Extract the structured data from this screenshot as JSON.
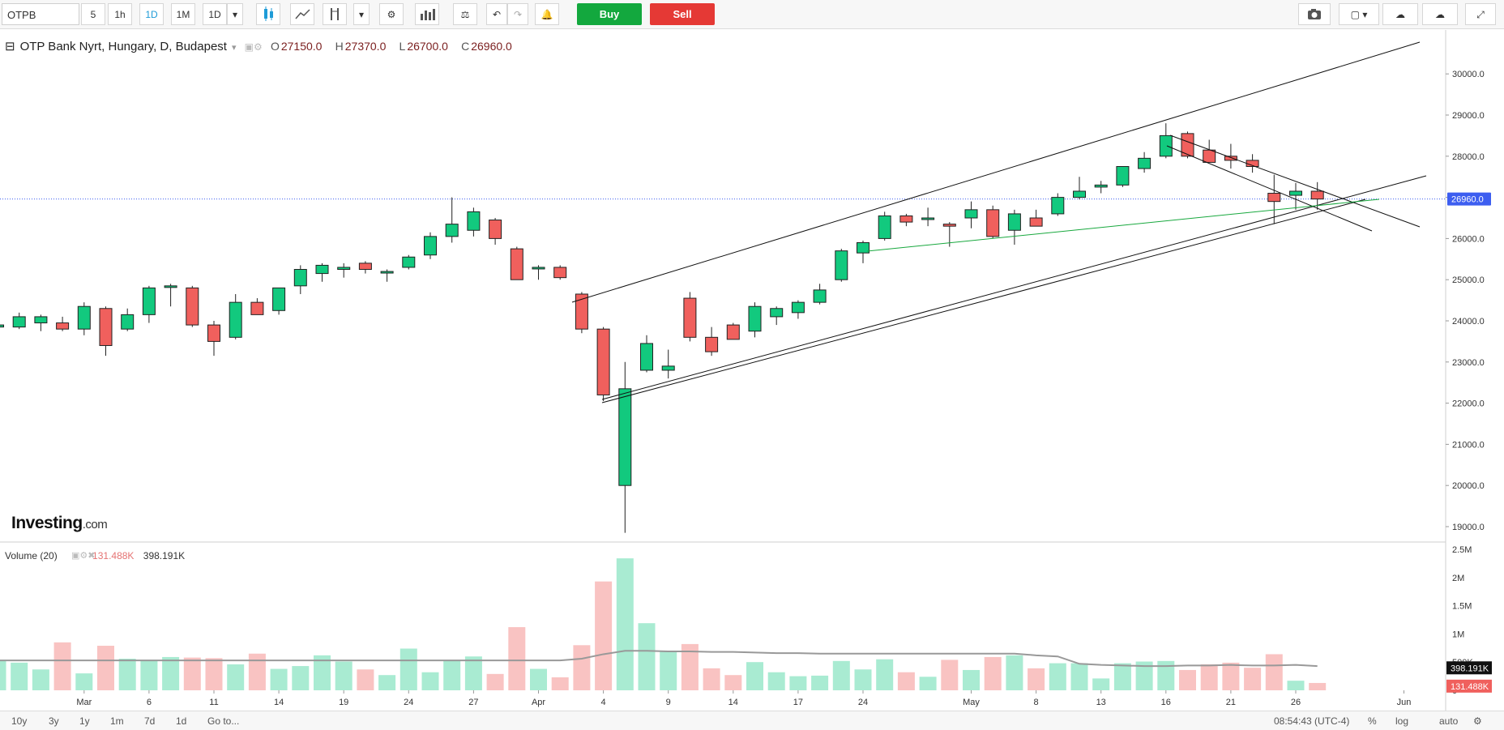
{
  "toolbar": {
    "symbol": "OTPB",
    "intervals": [
      "5",
      "1h",
      "1D",
      "1M",
      "1D"
    ],
    "active_interval_index": 2,
    "buy_label": "Buy",
    "sell_label": "Sell"
  },
  "legend": {
    "title": "OTP Bank Nyrt, Hungary, D, Budapest",
    "open_label": "O",
    "open": "27150.0",
    "high_label": "H",
    "high": "27370.0",
    "low_label": "L",
    "low": "26700.0",
    "close_label": "C",
    "close": "26960.0"
  },
  "volume_legend": {
    "title": "Volume (20)",
    "value1": "131.488K",
    "value2": "398.191K"
  },
  "logo": {
    "main": "Investing",
    "suffix": ".com"
  },
  "bottom": {
    "ranges": [
      "10y",
      "3y",
      "1y",
      "1m",
      "7d",
      "1d"
    ],
    "goto": "Go to...",
    "time": "08:54:43 (UTC-4)",
    "percent": "%",
    "log": "log",
    "auto": "auto"
  },
  "colors": {
    "up": "#12c97e",
    "down": "#f0605d",
    "volume_up": "#a9ebd2",
    "volume_down": "#f9c3c2",
    "price_line": "#3d5ef0"
  },
  "chart_data": {
    "type": "candlestick",
    "current_price": 26960,
    "current_price_label": "26960.0",
    "ylim": [
      18700,
      30700
    ],
    "y_ticks": [
      19000,
      20000,
      21000,
      22000,
      23000,
      24000,
      25000,
      26000,
      27000,
      28000,
      29000,
      30000
    ],
    "y_tick_labels": [
      "19000.0",
      "20000.0",
      "21000.0",
      "22000.0",
      "23000.0",
      "24000.0",
      "25000.0",
      "26000.0",
      "27000.0",
      "28000.0",
      "29000.0",
      "30000.0"
    ],
    "x_ticks": [
      {
        "index": 4,
        "label": "Mar"
      },
      {
        "index": 7,
        "label": "6"
      },
      {
        "index": 10,
        "label": "11"
      },
      {
        "index": 13,
        "label": "14"
      },
      {
        "index": 16,
        "label": "19"
      },
      {
        "index": 19,
        "label": "24"
      },
      {
        "index": 22,
        "label": "27"
      },
      {
        "index": 25,
        "label": "Apr"
      },
      {
        "index": 28,
        "label": "4"
      },
      {
        "index": 31,
        "label": "9"
      },
      {
        "index": 34,
        "label": "14"
      },
      {
        "index": 37,
        "label": "17"
      },
      {
        "index": 40,
        "label": "24"
      },
      {
        "index": 45,
        "label": "May"
      },
      {
        "index": 48,
        "label": "8"
      },
      {
        "index": 51,
        "label": "13"
      },
      {
        "index": 54,
        "label": "16"
      },
      {
        "index": 57,
        "label": "21"
      },
      {
        "index": 60,
        "label": "26"
      },
      {
        "index": 65,
        "label": "Jun"
      }
    ],
    "candles": [
      {
        "o": 23850,
        "h": 23950,
        "l": 23800,
        "c": 23900
      },
      {
        "o": 23850,
        "h": 24200,
        "l": 23800,
        "c": 24100
      },
      {
        "o": 23950,
        "h": 24150,
        "l": 23750,
        "c": 24100
      },
      {
        "o": 23950,
        "h": 24100,
        "l": 23750,
        "c": 23800
      },
      {
        "o": 23800,
        "h": 24450,
        "l": 23650,
        "c": 24350
      },
      {
        "o": 24300,
        "h": 24350,
        "l": 23150,
        "c": 23400
      },
      {
        "o": 23800,
        "h": 24300,
        "l": 23750,
        "c": 24150
      },
      {
        "o": 24150,
        "h": 24850,
        "l": 23950,
        "c": 24800
      },
      {
        "o": 24820,
        "h": 24900,
        "l": 24350,
        "c": 24850
      },
      {
        "o": 24800,
        "h": 24850,
        "l": 23850,
        "c": 23900
      },
      {
        "o": 23900,
        "h": 24000,
        "l": 23150,
        "c": 23500
      },
      {
        "o": 23600,
        "h": 24650,
        "l": 23550,
        "c": 24450
      },
      {
        "o": 24450,
        "h": 24550,
        "l": 24150,
        "c": 24150
      },
      {
        "o": 24250,
        "h": 24800,
        "l": 24150,
        "c": 24800
      },
      {
        "o": 24850,
        "h": 25350,
        "l": 24650,
        "c": 25250
      },
      {
        "o": 25150,
        "h": 25400,
        "l": 24950,
        "c": 25350
      },
      {
        "o": 25250,
        "h": 25400,
        "l": 25050,
        "c": 25300
      },
      {
        "o": 25400,
        "h": 25450,
        "l": 25150,
        "c": 25250
      },
      {
        "o": 25200,
        "h": 25250,
        "l": 24950,
        "c": 25200
      },
      {
        "o": 25300,
        "h": 25600,
        "l": 25250,
        "c": 25550
      },
      {
        "o": 25600,
        "h": 26150,
        "l": 25500,
        "c": 26050
      },
      {
        "o": 26050,
        "h": 27000,
        "l": 25900,
        "c": 26350
      },
      {
        "o": 26200,
        "h": 26750,
        "l": 26050,
        "c": 26650
      },
      {
        "o": 26450,
        "h": 26500,
        "l": 25850,
        "c": 26000
      },
      {
        "o": 25750,
        "h": 25800,
        "l": 25000,
        "c": 25000
      },
      {
        "o": 25300,
        "h": 25350,
        "l": 25000,
        "c": 25300
      },
      {
        "o": 25300,
        "h": 25350,
        "l": 25000,
        "c": 25050
      },
      {
        "o": 24650,
        "h": 24700,
        "l": 23700,
        "c": 23800
      },
      {
        "o": 23800,
        "h": 23850,
        "l": 22050,
        "c": 22200
      },
      {
        "o": 20000,
        "h": 23000,
        "l": 18850,
        "c": 22350
      },
      {
        "o": 22800,
        "h": 23650,
        "l": 22750,
        "c": 23450
      },
      {
        "o": 22800,
        "h": 23300,
        "l": 22600,
        "c": 22900
      },
      {
        "o": 24550,
        "h": 24700,
        "l": 23500,
        "c": 23600
      },
      {
        "o": 23600,
        "h": 23850,
        "l": 23150,
        "c": 23250
      },
      {
        "o": 23900,
        "h": 23950,
        "l": 23550,
        "c": 23550
      },
      {
        "o": 23750,
        "h": 24450,
        "l": 23600,
        "c": 24350
      },
      {
        "o": 24100,
        "h": 24350,
        "l": 23900,
        "c": 24300
      },
      {
        "o": 24200,
        "h": 24500,
        "l": 24050,
        "c": 24450
      },
      {
        "o": 24450,
        "h": 24900,
        "l": 24400,
        "c": 24750
      },
      {
        "o": 25000,
        "h": 25750,
        "l": 24950,
        "c": 25700
      },
      {
        "o": 25650,
        "h": 25950,
        "l": 25400,
        "c": 25900
      },
      {
        "o": 26000,
        "h": 26650,
        "l": 25950,
        "c": 26550
      },
      {
        "o": 26550,
        "h": 26600,
        "l": 26300,
        "c": 26400
      },
      {
        "o": 26500,
        "h": 26750,
        "l": 26300,
        "c": 26500
      },
      {
        "o": 26350,
        "h": 26400,
        "l": 25800,
        "c": 26300
      },
      {
        "o": 26500,
        "h": 26900,
        "l": 26250,
        "c": 26700
      },
      {
        "o": 26700,
        "h": 26800,
        "l": 26000,
        "c": 26050
      },
      {
        "o": 26200,
        "h": 26700,
        "l": 25850,
        "c": 26600
      },
      {
        "o": 26500,
        "h": 26700,
        "l": 26300,
        "c": 26300
      },
      {
        "o": 26600,
        "h": 27100,
        "l": 26550,
        "c": 27000
      },
      {
        "o": 27000,
        "h": 27500,
        "l": 26950,
        "c": 27150
      },
      {
        "o": 27250,
        "h": 27400,
        "l": 27100,
        "c": 27300
      },
      {
        "o": 27300,
        "h": 27750,
        "l": 27250,
        "c": 27750
      },
      {
        "o": 27700,
        "h": 28100,
        "l": 27600,
        "c": 27950
      },
      {
        "o": 28000,
        "h": 28800,
        "l": 27950,
        "c": 28500
      },
      {
        "o": 28550,
        "h": 28600,
        "l": 27950,
        "c": 28000
      },
      {
        "o": 28150,
        "h": 28400,
        "l": 27850,
        "c": 27850
      },
      {
        "o": 28000,
        "h": 28300,
        "l": 27700,
        "c": 27900
      },
      {
        "o": 27900,
        "h": 28050,
        "l": 27600,
        "c": 27750
      },
      {
        "o": 27100,
        "h": 27550,
        "l": 26350,
        "c": 26900
      },
      {
        "o": 27050,
        "h": 27350,
        "l": 26700,
        "c": 27150
      },
      {
        "o": 27150,
        "h": 27370,
        "l": 26700,
        "c": 26960
      }
    ],
    "volume_ylim": [
      0,
      2500000
    ],
    "volume_ticks": [
      "0",
      "500K",
      "1M",
      "1.5M",
      "2M",
      "2.5M"
    ],
    "volume_tick_values": [
      0,
      500000,
      1000000,
      1500000,
      2000000,
      2500000
    ],
    "volumes": [
      540000,
      490000,
      370000,
      850000,
      300000,
      790000,
      560000,
      540000,
      590000,
      580000,
      570000,
      460000,
      650000,
      380000,
      430000,
      620000,
      510000,
      370000,
      270000,
      740000,
      320000,
      520000,
      600000,
      290000,
      1120000,
      380000,
      230000,
      800000,
      1930000,
      2340000,
      1190000,
      690000,
      820000,
      390000,
      270000,
      500000,
      320000,
      250000,
      260000,
      520000,
      370000,
      550000,
      320000,
      240000,
      540000,
      360000,
      590000,
      620000,
      390000,
      480000,
      480000,
      210000,
      480000,
      510000,
      520000,
      360000,
      460000,
      490000,
      400000,
      640000,
      170000,
      130000
    ],
    "volume_ma": [
      530000,
      530000,
      530000,
      530000,
      530000,
      530000,
      530000,
      530000,
      530000,
      530000,
      530000,
      530000,
      530000,
      530000,
      530000,
      530000,
      530000,
      530000,
      530000,
      530000,
      530000,
      530000,
      530000,
      530000,
      530000,
      530000,
      530000,
      560000,
      640000,
      700000,
      700000,
      690000,
      690000,
      680000,
      680000,
      670000,
      660000,
      660000,
      650000,
      650000,
      650000,
      650000,
      650000,
      650000,
      650000,
      650000,
      650000,
      650000,
      620000,
      600000,
      470000,
      450000,
      440000,
      430000,
      430000,
      440000,
      440000,
      450000,
      440000,
      440000,
      450000,
      430000
    ]
  }
}
